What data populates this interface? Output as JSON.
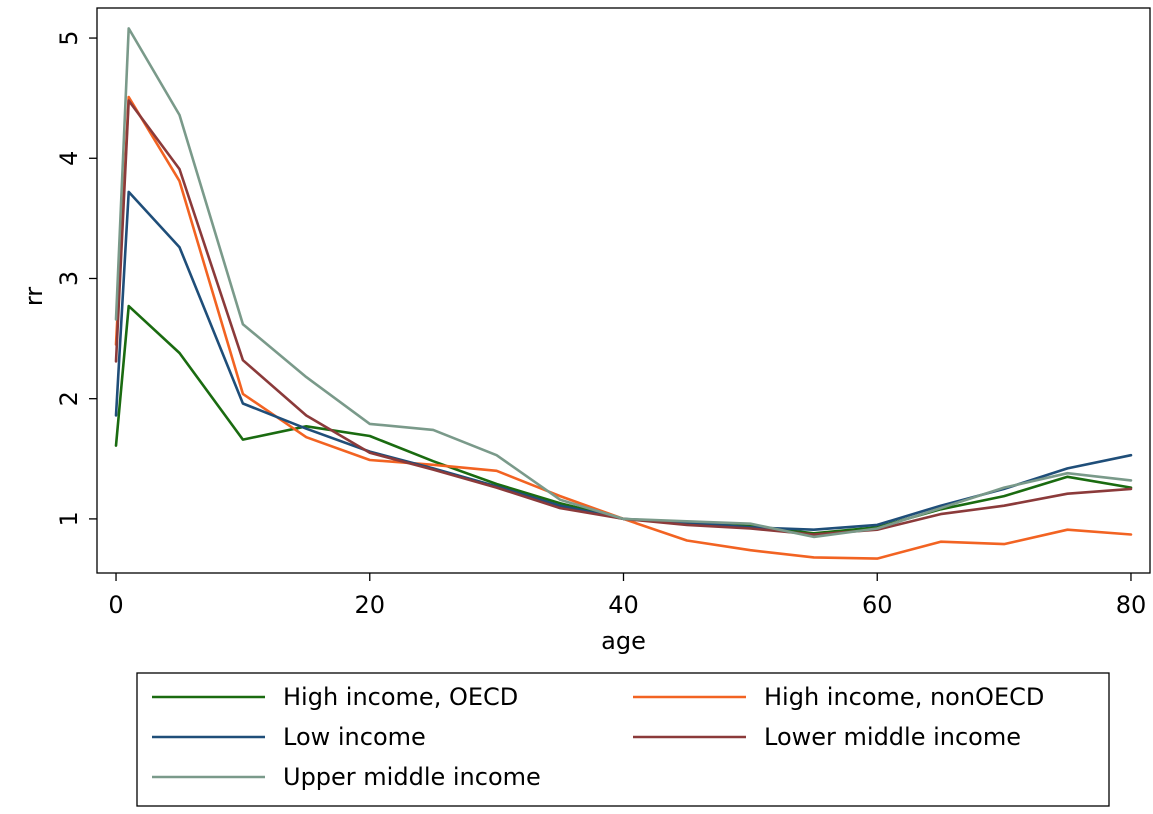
{
  "chart_data": {
    "type": "line",
    "title": "",
    "xlabel": "age",
    "ylabel": "rr",
    "xlim": [
      -1.5,
      81.5
    ],
    "ylim": [
      0.55,
      5.25
    ],
    "x_ticks": [
      0,
      20,
      40,
      60,
      80
    ],
    "y_ticks": [
      1,
      2,
      3,
      4,
      5
    ],
    "grid": false,
    "legend_position": "bottom",
    "x": [
      0,
      1,
      5,
      10,
      15,
      20,
      25,
      30,
      35,
      40,
      45,
      50,
      55,
      60,
      65,
      70,
      75,
      80
    ],
    "series": [
      {
        "name": "High income, OECD",
        "color": "#1a6b10",
        "values": [
          1.61,
          2.77,
          2.38,
          1.66,
          1.77,
          1.69,
          1.48,
          1.29,
          1.13,
          1.0,
          0.96,
          0.94,
          0.88,
          0.93,
          1.08,
          1.19,
          1.35,
          1.26
        ]
      },
      {
        "name": "High income, nonOECD",
        "color": "#f26322",
        "values": [
          2.45,
          4.51,
          3.81,
          2.04,
          1.68,
          1.49,
          1.45,
          1.4,
          1.19,
          1.0,
          0.82,
          0.74,
          0.68,
          0.67,
          0.81,
          0.79,
          0.91,
          0.87
        ]
      },
      {
        "name": "Low income",
        "color": "#1f4e79",
        "values": [
          1.86,
          3.72,
          3.26,
          1.96,
          1.75,
          1.56,
          1.42,
          1.27,
          1.11,
          1.0,
          0.97,
          0.93,
          0.91,
          0.95,
          1.11,
          1.25,
          1.42,
          1.53
        ]
      },
      {
        "name": "Lower middle income",
        "color": "#8b3a3a",
        "values": [
          2.31,
          4.48,
          3.91,
          2.32,
          1.86,
          1.55,
          1.41,
          1.26,
          1.09,
          1.0,
          0.95,
          0.92,
          0.87,
          0.91,
          1.04,
          1.11,
          1.21,
          1.25
        ]
      },
      {
        "name": "Upper middle income",
        "color": "#7a9a8a",
        "values": [
          2.66,
          5.08,
          4.36,
          2.62,
          2.18,
          1.79,
          1.74,
          1.53,
          1.16,
          1.0,
          0.98,
          0.96,
          0.85,
          0.92,
          1.09,
          1.26,
          1.38,
          1.32
        ]
      }
    ]
  }
}
